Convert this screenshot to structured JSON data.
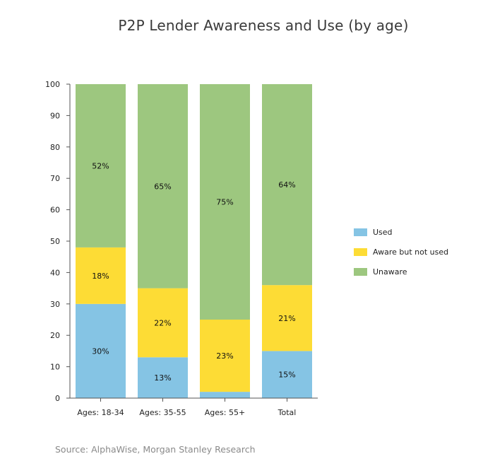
{
  "chart_data": {
    "type": "bar",
    "stacked": true,
    "title": "P2P Lender Awareness and Use (by age)",
    "xlabel": "",
    "ylabel": "",
    "ylim": [
      0,
      100
    ],
    "yticks": [
      0,
      10,
      20,
      30,
      40,
      50,
      60,
      70,
      80,
      90,
      100
    ],
    "categories": [
      "Ages: 18-34",
      "Ages: 35-55",
      "Ages: 55+",
      "Total"
    ],
    "series": [
      {
        "name": "Used",
        "color": "#85c4e4",
        "values": [
          30,
          13,
          2,
          15
        ],
        "labels": [
          "30%",
          "13%",
          "",
          "15%"
        ]
      },
      {
        "name": "Aware but not used",
        "color": "#fddc35",
        "values": [
          18,
          22,
          23,
          21
        ],
        "labels": [
          "18%",
          "22%",
          "23%",
          "21%"
        ]
      },
      {
        "name": "Unaware",
        "color": "#9dc77f",
        "values": [
          52,
          65,
          75,
          64
        ],
        "labels": [
          "52%",
          "65%",
          "75%",
          "64%"
        ]
      }
    ],
    "legend_position": "right"
  },
  "source": "Source: AlphaWise, Morgan Stanley Research"
}
